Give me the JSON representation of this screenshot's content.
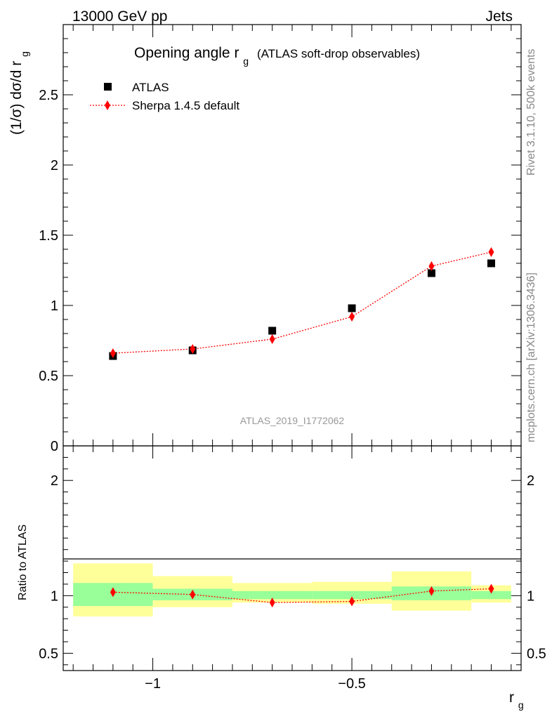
{
  "header": {
    "left_label": "13000 GeV pp",
    "right_label": "Jets"
  },
  "side_labels": {
    "rivet": "Rivet 3.1.10,  500k events",
    "mcplots": "mcplots.cern.ch [arXiv:1306.3436]"
  },
  "chart_data": [
    {
      "type": "scatter",
      "title_main": "Opening angle r",
      "title_sub": "g",
      "title_note": "(ATLAS soft-drop observables)",
      "ylabel_main": "(1/σ) dσ/d r",
      "ylabel_sub": "g",
      "watermark": "ATLAS_2019_I1772062",
      "ylim": [
        0,
        3.0
      ],
      "xlim": [
        -1.225,
        -0.075
      ],
      "ytick_labels": [
        "0",
        "0.5",
        "1",
        "1.5",
        "2",
        "2.5"
      ],
      "ytick_values": [
        0,
        0.5,
        1,
        1.5,
        2,
        2.5
      ],
      "grid": false,
      "legend_position": "top-left",
      "x": [
        -1.1,
        -0.9,
        -0.7,
        -0.5,
        -0.3,
        -0.15
      ],
      "series": [
        {
          "name": "ATLAS",
          "marker": "square",
          "color": "#000000",
          "values": [
            0.64,
            0.68,
            0.82,
            0.98,
            1.23,
            1.3
          ]
        },
        {
          "name": "Sherpa 1.4.5 default",
          "marker": "diamond",
          "line": "dotted",
          "color": "#ff0000",
          "values": [
            0.66,
            0.69,
            0.76,
            0.92,
            1.28,
            1.38
          ],
          "errors": [
            0.01,
            0.01,
            0.01,
            0.01,
            0.015,
            0.025
          ]
        }
      ]
    },
    {
      "type": "scatter",
      "ylabel": "Ratio to ATLAS",
      "xlabel_main": "r",
      "xlabel_sub": "g",
      "ylim": [
        0.35,
        2.3
      ],
      "xlim": [
        -1.225,
        -0.075
      ],
      "xtick_labels": [
        "−1",
        "−0.5"
      ],
      "xtick_values": [
        -1,
        -0.5
      ],
      "ytick_labels": [
        "0.5",
        "1",
        "2"
      ],
      "ytick_values": [
        0.5,
        1,
        2
      ],
      "bins": [
        {
          "lo": -1.2,
          "hi": -1.0,
          "inner": [
            0.91,
            1.11
          ],
          "outer": [
            0.82,
            1.28
          ]
        },
        {
          "lo": -1.0,
          "hi": -0.8,
          "inner": [
            0.96,
            1.06
          ],
          "outer": [
            0.9,
            1.17
          ]
        },
        {
          "lo": -0.8,
          "hi": -0.6,
          "inner": [
            0.97,
            1.04
          ],
          "outer": [
            0.94,
            1.11
          ]
        },
        {
          "lo": -0.6,
          "hi": -0.4,
          "inner": [
            0.97,
            1.04
          ],
          "outer": [
            0.93,
            1.12
          ]
        },
        {
          "lo": -0.4,
          "hi": -0.2,
          "inner": [
            0.96,
            1.08
          ],
          "outer": [
            0.87,
            1.21
          ]
        },
        {
          "lo": -0.2,
          "hi": -0.1,
          "inner": [
            0.97,
            1.04
          ],
          "outer": [
            0.94,
            1.09
          ]
        }
      ],
      "x": [
        -1.1,
        -0.9,
        -0.7,
        -0.5,
        -0.3,
        -0.15
      ],
      "series": [
        {
          "name": "Sherpa 1.4.5 default",
          "color": "#ff0000",
          "values": [
            1.03,
            1.01,
            0.94,
            0.95,
            1.04,
            1.06
          ]
        }
      ],
      "colors": {
        "inner_band": "#99ff99",
        "outer_band": "#ffff99"
      }
    }
  ]
}
